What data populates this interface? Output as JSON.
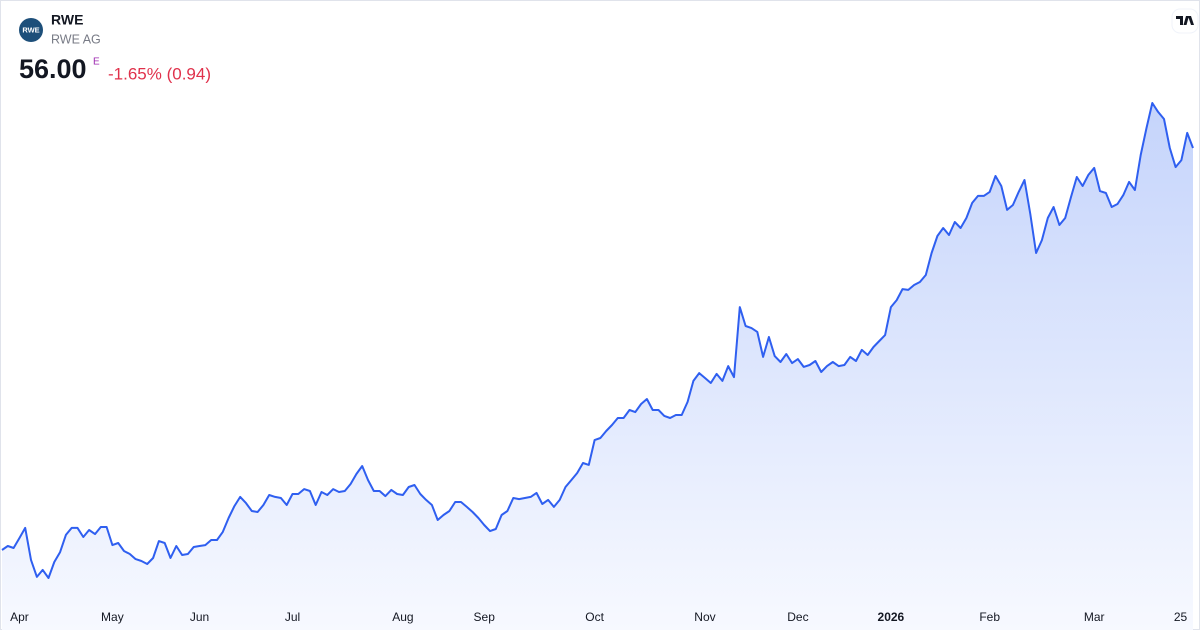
{
  "chart_data": {
    "type": "area",
    "logo_text": "RWE",
    "title": "RWE",
    "subtitle": "RWE AG",
    "price": "56.00",
    "price_flag": "E",
    "change": "-1.65% (0.94)",
    "color": "#2f5ff0",
    "ylim": [
      30,
      60
    ],
    "xticks": [
      {
        "value": 3,
        "label": "Apr"
      },
      {
        "value": 19,
        "label": "May"
      },
      {
        "value": 34,
        "label": "Jun"
      },
      {
        "value": 50,
        "label": "Jul"
      },
      {
        "value": 69,
        "label": "Aug"
      },
      {
        "value": 83,
        "label": "Sep"
      },
      {
        "value": 102,
        "label": "Oct"
      },
      {
        "value": 121,
        "label": "Nov"
      },
      {
        "value": 137,
        "label": "Dec"
      },
      {
        "value": 153,
        "label": "2026"
      },
      {
        "value": 170,
        "label": "Feb"
      },
      {
        "value": 188,
        "label": "Mar"
      },
      {
        "value": 204,
        "label": "25"
      }
    ],
    "values": [
      33.03,
      33.26,
      33.14,
      33.71,
      34.29,
      32.46,
      31.49,
      31.89,
      31.43,
      32.34,
      32.91,
      33.89,
      34.29,
      34.29,
      33.77,
      34.17,
      33.94,
      34.34,
      34.34,
      33.31,
      33.43,
      32.97,
      32.8,
      32.51,
      32.4,
      32.23,
      32.57,
      33.54,
      33.43,
      32.57,
      33.26,
      32.74,
      32.8,
      33.2,
      33.26,
      33.31,
      33.6,
      33.6,
      34.06,
      34.86,
      35.54,
      36.06,
      35.71,
      35.26,
      35.2,
      35.6,
      36.17,
      36.06,
      36.0,
      35.6,
      36.23,
      36.23,
      36.51,
      36.4,
      35.6,
      36.34,
      36.17,
      36.51,
      36.34,
      36.4,
      36.8,
      37.37,
      37.83,
      37.03,
      36.4,
      36.4,
      36.11,
      36.46,
      36.23,
      36.17,
      36.63,
      36.74,
      36.23,
      35.89,
      35.6,
      34.74,
      35.03,
      35.26,
      35.77,
      35.77,
      35.49,
      35.2,
      34.86,
      34.46,
      34.11,
      34.23,
      35.03,
      35.26,
      36.0,
      35.94,
      36.0,
      36.06,
      36.29,
      35.66,
      35.89,
      35.49,
      35.89,
      36.63,
      37.03,
      37.43,
      38.0,
      37.89,
      39.31,
      39.43,
      39.83,
      40.17,
      40.57,
      40.57,
      41.03,
      40.91,
      41.37,
      41.66,
      41.03,
      41.03,
      40.69,
      40.57,
      40.74,
      40.74,
      41.49,
      42.69,
      43.14,
      42.86,
      42.57,
      43.09,
      42.69,
      43.54,
      42.91,
      46.91,
      45.83,
      45.71,
      45.49,
      44.06,
      45.2,
      44.11,
      43.77,
      44.23,
      43.71,
      43.94,
      43.49,
      43.6,
      43.83,
      43.2,
      43.54,
      43.77,
      43.54,
      43.6,
      44.06,
      43.83,
      44.46,
      44.17,
      44.63,
      44.97,
      45.31,
      46.91,
      47.31,
      47.94,
      47.89,
      48.17,
      48.34,
      48.74,
      50.0,
      50.97,
      51.43,
      51.03,
      51.77,
      51.43,
      52.0,
      52.86,
      53.26,
      53.26,
      53.49,
      54.4,
      53.83,
      52.46,
      52.74,
      53.49,
      54.17,
      52.23,
      50.0,
      50.74,
      52.0,
      52.63,
      51.6,
      52.0,
      53.2,
      54.34,
      53.83,
      54.46,
      54.86,
      53.54,
      53.43,
      52.63,
      52.8,
      53.31,
      54.06,
      53.6,
      55.6,
      57.14,
      58.57,
      58.06,
      57.66,
      56.0,
      54.91,
      55.31,
      56.86,
      56.0
    ]
  }
}
